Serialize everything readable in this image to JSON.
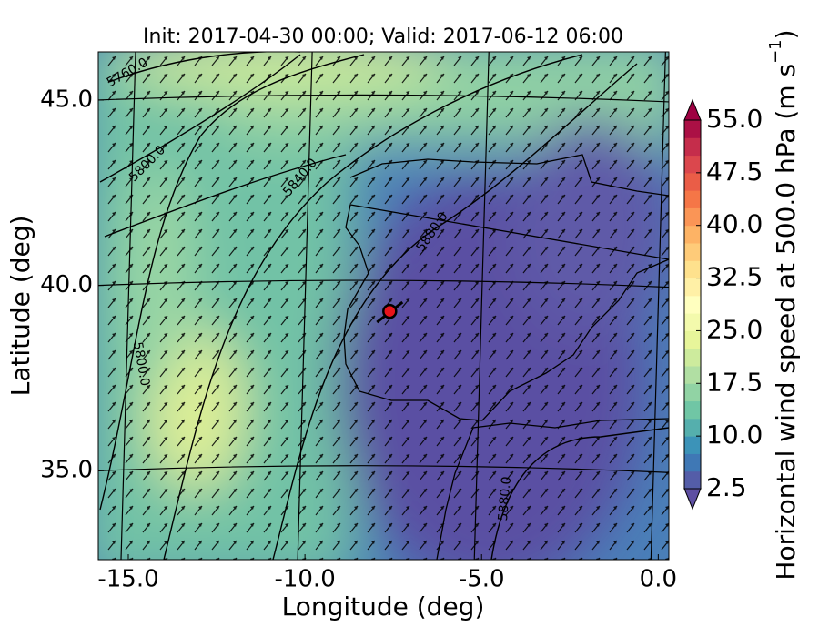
{
  "chart_data": {
    "type": "map",
    "title": "Init: 2017-04-30 00:00; Valid: 2017-06-12 06:00",
    "xlabel": "Longitude (deg)",
    "ylabel": "Latitude (deg)",
    "xlim": [
      -15.85,
      0.3
    ],
    "ylim": [
      32.6,
      46.3
    ],
    "xticks": [
      {
        "value": -15,
        "label": "-15.0"
      },
      {
        "value": -10,
        "label": "-10.0"
      },
      {
        "value": -5,
        "label": "-5.0"
      },
      {
        "value": 0,
        "label": "0.0"
      }
    ],
    "yticks": [
      {
        "value": 35,
        "label": "35.0"
      },
      {
        "value": 40,
        "label": "40.0"
      },
      {
        "value": 45,
        "label": "45.0"
      }
    ],
    "grid": true,
    "contour_labels": [
      "5760.0",
      "5800.0",
      "5840.0",
      "5880.0",
      "5800.0",
      "5880.0"
    ],
    "point": {
      "lon": -7.6,
      "lat": 39.3,
      "color": "#e8141c"
    },
    "colorbar": {
      "label": "Horizontal wind speed at 500.0 hPa (m s",
      "label_superscript": "−1",
      "label_suffix": ")",
      "lim": [
        2.5,
        55
      ],
      "ticks": [
        2.5,
        {
          "value": 10,
          "label": "10.0"
        },
        17.5,
        {
          "value": 25,
          "label": "25.0"
        },
        32.5,
        {
          "value": 40,
          "label": "40.0"
        },
        47.5,
        {
          "value": 55,
          "label": "55.0"
        }
      ],
      "colors": [
        "#5e4fa2",
        "#3288bd",
        "#66c2a5",
        "#abdda4",
        "#e6f598",
        "#ffffbf",
        "#fee08b",
        "#fdae61",
        "#f46d43",
        "#d53e4f",
        "#9e0142"
      ]
    }
  }
}
